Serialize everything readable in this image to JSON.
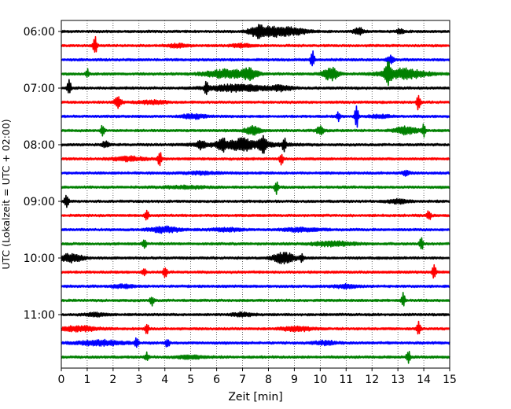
{
  "chart_data": {
    "type": "line",
    "title": "",
    "xlabel": "Zeit  [min]",
    "ylabel": "UTC (Lokalzeit = UTC + 02:00)",
    "xlim": [
      0,
      15
    ],
    "x_ticks": [
      "0",
      "1",
      "2",
      "3",
      "4",
      "5",
      "6",
      "7",
      "8",
      "9",
      "10",
      "11",
      "12",
      "13",
      "14",
      "15"
    ],
    "y_tick_labels": [
      "06:00",
      "07:00",
      "08:00",
      "09:00",
      "10:00",
      "11:00"
    ],
    "y_tick_rows": [
      0,
      4,
      8,
      12,
      16,
      20
    ],
    "grid": "vertical dotted",
    "row_colors": [
      "#000000",
      "#ff0000",
      "#0000ff",
      "#008000"
    ],
    "rows": [
      {
        "start": "06:00",
        "events": [
          [
            7.6,
            0.25,
            0.8
          ],
          [
            8.3,
            0.35,
            0.55
          ],
          [
            9.0,
            0.4,
            0.35
          ],
          [
            11.5,
            0.15,
            0.45
          ],
          [
            13.1,
            0.1,
            0.35
          ]
        ]
      },
      {
        "start": "06:15",
        "events": [
          [
            1.3,
            0.05,
            1.4
          ],
          [
            4.5,
            0.3,
            0.2
          ],
          [
            7.0,
            0.3,
            0.2
          ]
        ]
      },
      {
        "start": "06:30",
        "events": [
          [
            9.7,
            0.05,
            1.3
          ],
          [
            12.7,
            0.1,
            0.6
          ]
        ]
      },
      {
        "start": "06:45",
        "events": [
          [
            1.0,
            0.05,
            0.6
          ],
          [
            6.4,
            0.6,
            0.55
          ],
          [
            7.3,
            0.2,
            0.6
          ],
          [
            10.4,
            0.2,
            0.9
          ],
          [
            12.6,
            0.08,
            1.5
          ],
          [
            13.2,
            0.6,
            0.7
          ]
        ]
      },
      {
        "start": "07:00",
        "events": [
          [
            0.3,
            0.05,
            1.2
          ],
          [
            5.6,
            0.05,
            0.9
          ],
          [
            6.8,
            0.8,
            0.45
          ],
          [
            8.5,
            0.3,
            0.3
          ]
        ]
      },
      {
        "start": "07:15",
        "events": [
          [
            2.2,
            0.1,
            0.7
          ],
          [
            3.5,
            0.4,
            0.2
          ],
          [
            13.8,
            0.05,
            1.2
          ]
        ]
      },
      {
        "start": "07:30",
        "events": [
          [
            5.1,
            0.3,
            0.3
          ],
          [
            10.7,
            0.05,
            0.6
          ],
          [
            11.4,
            0.05,
            1.7
          ],
          [
            12.3,
            0.3,
            0.2
          ]
        ]
      },
      {
        "start": "07:45",
        "events": [
          [
            1.6,
            0.05,
            0.8
          ],
          [
            7.4,
            0.2,
            0.6
          ],
          [
            10.0,
            0.1,
            0.6
          ],
          [
            13.3,
            0.3,
            0.5
          ],
          [
            14.0,
            0.05,
            0.8
          ]
        ]
      },
      {
        "start": "08:00",
        "events": [
          [
            1.7,
            0.1,
            0.4
          ],
          [
            5.4,
            0.1,
            0.5
          ],
          [
            6.2,
            0.1,
            0.8
          ],
          [
            7.0,
            0.3,
            0.6
          ],
          [
            7.8,
            0.1,
            1.1
          ],
          [
            8.6,
            0.05,
            0.9
          ],
          [
            6.9,
            1.2,
            0.3
          ]
        ]
      },
      {
        "start": "08:15",
        "events": [
          [
            2.6,
            0.4,
            0.3
          ],
          [
            3.8,
            0.05,
            1.1
          ],
          [
            8.5,
            0.05,
            0.9
          ]
        ]
      },
      {
        "start": "08:30",
        "events": [
          [
            13.3,
            0.1,
            0.35
          ],
          [
            5.5,
            0.5,
            0.15
          ]
        ]
      },
      {
        "start": "08:45",
        "events": [
          [
            8.3,
            0.05,
            0.9
          ],
          [
            4.8,
            0.6,
            0.15
          ]
        ]
      },
      {
        "start": "09:00",
        "events": [
          [
            0.2,
            0.05,
            1.1
          ],
          [
            13.0,
            0.3,
            0.25
          ]
        ]
      },
      {
        "start": "09:15",
        "events": [
          [
            3.3,
            0.05,
            0.9
          ],
          [
            14.2,
            0.05,
            0.7
          ]
        ]
      },
      {
        "start": "09:30",
        "events": [
          [
            4.0,
            0.4,
            0.4
          ],
          [
            9.3,
            0.5,
            0.25
          ],
          [
            6.4,
            0.4,
            0.2
          ]
        ]
      },
      {
        "start": "09:45",
        "events": [
          [
            3.2,
            0.05,
            0.7
          ],
          [
            13.9,
            0.05,
            1.0
          ],
          [
            10.5,
            0.6,
            0.3
          ]
        ]
      },
      {
        "start": "10:00",
        "events": [
          [
            0.4,
            0.3,
            0.6
          ],
          [
            8.6,
            0.3,
            0.7
          ],
          [
            9.3,
            0.05,
            0.5
          ]
        ]
      },
      {
        "start": "10:15",
        "events": [
          [
            3.2,
            0.05,
            0.6
          ],
          [
            4.0,
            0.05,
            0.9
          ],
          [
            14.4,
            0.05,
            1.1
          ]
        ]
      },
      {
        "start": "10:30",
        "events": [
          [
            2.4,
            0.3,
            0.2
          ],
          [
            11.0,
            0.3,
            0.25
          ]
        ]
      },
      {
        "start": "10:45",
        "events": [
          [
            3.5,
            0.05,
            0.7
          ],
          [
            13.2,
            0.05,
            1.0
          ]
        ]
      },
      {
        "start": "11:00",
        "events": [
          [
            1.3,
            0.3,
            0.2
          ],
          [
            7.0,
            0.3,
            0.25
          ]
        ]
      },
      {
        "start": "11:15",
        "events": [
          [
            0.7,
            0.5,
            0.35
          ],
          [
            3.3,
            0.05,
            0.8
          ],
          [
            13.8,
            0.05,
            1.1
          ],
          [
            9.1,
            0.4,
            0.3
          ]
        ]
      },
      {
        "start": "11:30",
        "events": [
          [
            1.5,
            0.6,
            0.35
          ],
          [
            2.9,
            0.05,
            0.6
          ],
          [
            4.1,
            0.05,
            0.7
          ],
          [
            10.2,
            0.3,
            0.25
          ]
        ]
      },
      {
        "start": "11:45",
        "events": [
          [
            3.3,
            0.05,
            0.6
          ],
          [
            13.4,
            0.05,
            0.9
          ],
          [
            5.0,
            0.4,
            0.2
          ]
        ]
      }
    ]
  }
}
